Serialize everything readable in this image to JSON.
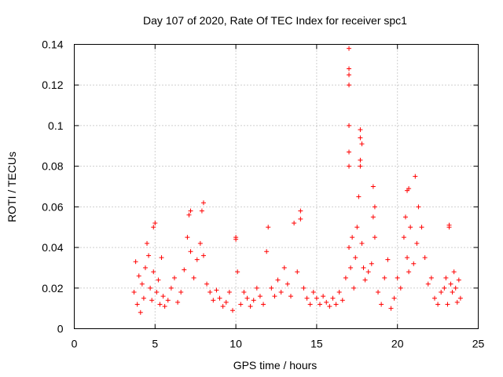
{
  "chart_data": {
    "type": "scatter",
    "title": "Day 107 of 2020, Rate Of TEC Index for receiver spc1",
    "xlabel": "GPS time / hours",
    "ylabel": "ROTI / TECUs",
    "xlim": [
      0,
      25
    ],
    "ylim": [
      0,
      0.14
    ],
    "xticks": [
      0,
      5,
      10,
      15,
      20,
      25
    ],
    "xtick_labels": [
      "0",
      "5",
      "10",
      "15",
      "20",
      "25"
    ],
    "yticks": [
      0,
      0.02,
      0.04,
      0.06,
      0.08,
      0.1,
      0.12,
      0.14
    ],
    "ytick_labels": [
      "0",
      "0.02",
      "0.04",
      "0.06",
      "0.08",
      "0.1",
      "0.12",
      "0.14"
    ],
    "grid": true,
    "marker": "plus",
    "colors": {
      "series": "#ff0000",
      "grid": "#a0a0a0",
      "frame": "#000000"
    },
    "series": [
      {
        "name": "ROTI",
        "x": [
          3.7,
          3.8,
          3.9,
          4.0,
          4.1,
          4.2,
          4.3,
          4.4,
          4.5,
          4.6,
          4.7,
          4.8,
          4.9,
          5.0,
          5.1,
          5.2,
          5.3,
          5.4,
          5.5,
          5.6,
          5.8,
          6.0,
          6.2,
          6.4,
          6.6,
          6.8,
          7.0,
          7.1,
          7.2,
          7.4,
          7.6,
          7.8,
          7.9,
          8.0,
          8.2,
          8.4,
          8.6,
          8.8,
          9.0,
          9.2,
          9.4,
          9.6,
          9.8,
          10.0,
          10.1,
          10.3,
          10.5,
          10.7,
          10.9,
          11.1,
          11.3,
          11.5,
          11.7,
          11.9,
          12.0,
          12.2,
          12.4,
          12.6,
          12.8,
          13.0,
          13.2,
          13.4,
          13.6,
          13.8,
          14.0,
          14.2,
          14.4,
          14.6,
          14.8,
          15.0,
          15.2,
          15.4,
          15.6,
          15.8,
          16.0,
          16.2,
          16.4,
          16.6,
          16.8,
          17.0,
          17.1,
          17.2,
          17.3,
          17.4,
          17.5,
          17.6,
          17.7,
          17.8,
          17.9,
          18.0,
          18.2,
          18.4,
          18.5,
          18.6,
          18.8,
          19.0,
          19.2,
          19.4,
          19.6,
          19.8,
          20.0,
          20.2,
          20.4,
          20.5,
          20.6,
          20.7,
          20.8,
          21.0,
          21.2,
          21.3,
          21.5,
          21.7,
          21.9,
          22.1,
          22.3,
          22.5,
          22.7,
          22.9,
          23.0,
          23.1,
          23.2,
          23.3,
          23.4,
          23.5,
          23.6,
          23.7,
          23.8,
          23.9,
          17.0,
          17.0,
          17.0,
          17.0,
          17.0,
          17.0,
          17.0,
          17.7,
          17.7,
          17.8,
          17.7,
          18.5,
          18.6,
          21.1,
          20.6,
          20.7,
          7.2,
          8.0,
          14.0,
          4.9,
          10.0,
          23.2
        ],
        "y": [
          0.018,
          0.033,
          0.012,
          0.026,
          0.008,
          0.022,
          0.015,
          0.03,
          0.042,
          0.036,
          0.02,
          0.014,
          0.028,
          0.052,
          0.018,
          0.024,
          0.012,
          0.035,
          0.016,
          0.011,
          0.014,
          0.02,
          0.025,
          0.013,
          0.018,
          0.029,
          0.045,
          0.056,
          0.038,
          0.025,
          0.034,
          0.042,
          0.058,
          0.036,
          0.022,
          0.018,
          0.014,
          0.019,
          0.015,
          0.011,
          0.013,
          0.018,
          0.009,
          0.045,
          0.028,
          0.012,
          0.018,
          0.015,
          0.011,
          0.014,
          0.02,
          0.016,
          0.012,
          0.038,
          0.05,
          0.02,
          0.016,
          0.024,
          0.018,
          0.03,
          0.022,
          0.016,
          0.052,
          0.028,
          0.054,
          0.02,
          0.015,
          0.012,
          0.018,
          0.015,
          0.012,
          0.016,
          0.013,
          0.011,
          0.015,
          0.012,
          0.018,
          0.014,
          0.025,
          0.04,
          0.03,
          0.045,
          0.02,
          0.035,
          0.05,
          0.065,
          0.08,
          0.042,
          0.03,
          0.024,
          0.028,
          0.032,
          0.055,
          0.045,
          0.018,
          0.012,
          0.025,
          0.034,
          0.01,
          0.015,
          0.025,
          0.02,
          0.045,
          0.055,
          0.035,
          0.028,
          0.05,
          0.032,
          0.042,
          0.06,
          0.05,
          0.035,
          0.022,
          0.025,
          0.015,
          0.012,
          0.018,
          0.02,
          0.025,
          0.012,
          0.05,
          0.022,
          0.018,
          0.028,
          0.02,
          0.013,
          0.024,
          0.015,
          0.138,
          0.128,
          0.125,
          0.12,
          0.1,
          0.087,
          0.08,
          0.098,
          0.094,
          0.091,
          0.083,
          0.07,
          0.06,
          0.075,
          0.068,
          0.069,
          0.058,
          0.062,
          0.058,
          0.05,
          0.044,
          0.051
        ]
      }
    ]
  }
}
